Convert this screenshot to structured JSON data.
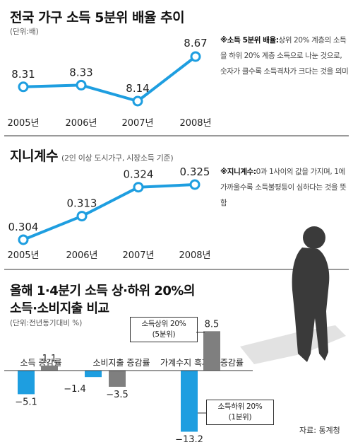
{
  "section1": {
    "title": "전국 가구 소득 5분위 배율 추이",
    "unit": "(단위:배)",
    "note_bold": "※소득 5분위 배율:",
    "note_text": "상위 20% 계층의 소득을 하위 20% 계층 소득으로 나눈 것으로, 숫자가 클수록 소득격차가 크다는 것을 의미"
  },
  "section2": {
    "title": "지니계수",
    "subtitle": "(2인 이상 도시가구, 시장소득 기준)",
    "note_bold": "※지니계수:",
    "note_text": "0과 1사이의 값을 가지며, 1에 가까울수록 소득불평등이 심하다는 것을 뜻함"
  },
  "section3": {
    "title_line1": "올해 1·4분기 소득 상·하위 20%의",
    "title_line2": "소득·소비지출 비교",
    "unit": "(단위:전년동기대비 %)",
    "callout_top": "소득상위 20%",
    "callout_top2": "(5분위)",
    "callout_bottom": "소득하위 20%",
    "callout_bottom2": "(1분위)"
  },
  "source": "자료: 통계청",
  "colors": {
    "line": "#1e9ee0",
    "low": "#1e9ee0",
    "high": "#7f7f7f",
    "shadow": "#3a3a3a"
  },
  "chart_data": [
    {
      "type": "line",
      "title": "전국 가구 소득 5분위 배율 추이",
      "x": [
        "2005년",
        "2006년",
        "2007년",
        "2008년"
      ],
      "series": [
        {
          "values": [
            8.31,
            8.33,
            8.14,
            8.67
          ],
          "labels": [
            "8.31",
            "8.33",
            "8.14",
            "8.67"
          ]
        }
      ],
      "grid": false
    },
    {
      "type": "line",
      "title": "지니계수",
      "x": [
        "2005년",
        "2006년",
        "2007년",
        "2008년"
      ],
      "series": [
        {
          "values": [
            0.304,
            0.313,
            0.324,
            0.325
          ],
          "labels": [
            "0.304",
            "0.313",
            "0.324",
            "0.325"
          ]
        }
      ],
      "grid": false
    },
    {
      "type": "bar",
      "title": "올해 1·4분기 소득 상·하위 20%의 소득·소비지출 비교",
      "categories": [
        "소득 증감률",
        "소비지출 증감률",
        "가계수지 흑자액 증감률"
      ],
      "series": [
        {
          "name": "소득하위 20%(1분위)",
          "values": [
            -5.1,
            -1.4,
            -13.2
          ],
          "labels": [
            "−5.1",
            "−1.4",
            "−13.2"
          ]
        },
        {
          "name": "소득상위 20%(5분위)",
          "values": [
            1.1,
            -3.5,
            8.5
          ],
          "labels": [
            "1.1",
            "−3.5",
            "8.5"
          ]
        }
      ]
    }
  ]
}
